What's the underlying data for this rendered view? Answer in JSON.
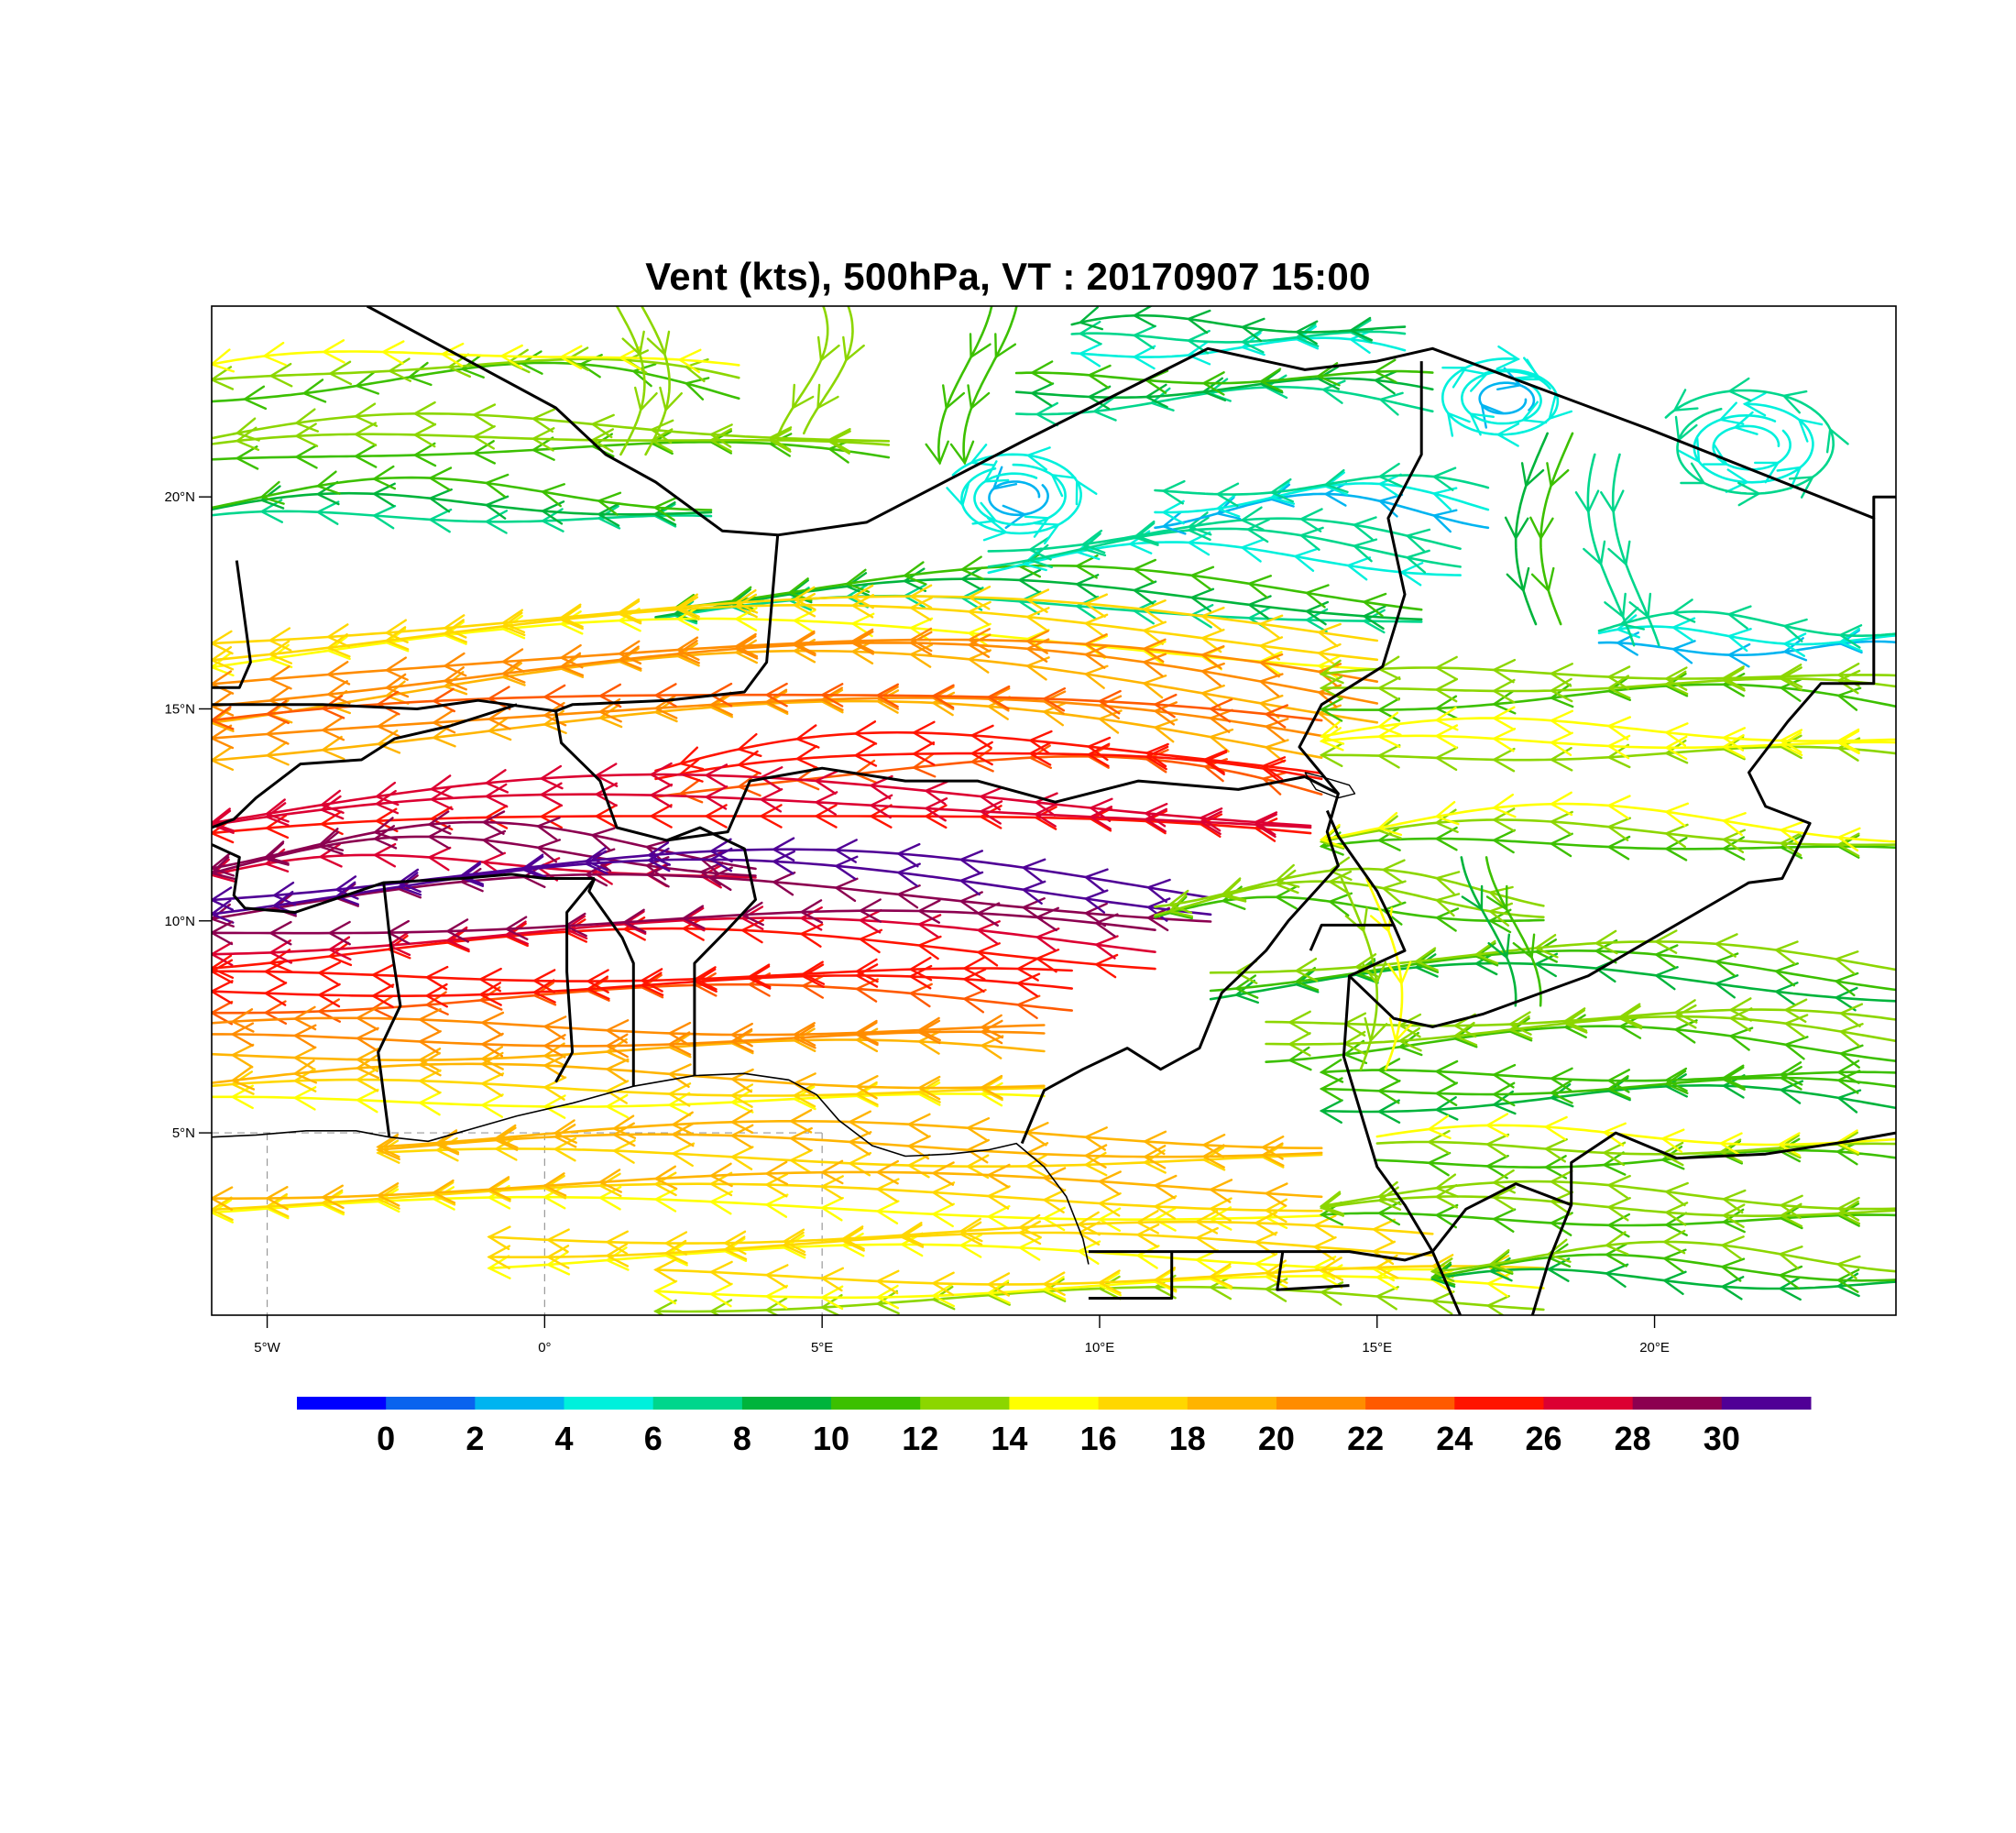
{
  "title": "Vent (kts), 500hPa, VT : 20170907  15:00",
  "map": {
    "lon_range": [
      -6,
      24.35
    ],
    "lat_range": [
      0.7,
      24.5
    ],
    "x_ticks": [
      {
        "lon": -5,
        "label": "5°W"
      },
      {
        "lon": 0,
        "label": "0°"
      },
      {
        "lon": 5,
        "label": "5°E"
      },
      {
        "lon": 10,
        "label": "10°E"
      },
      {
        "lon": 15,
        "label": "15°E"
      },
      {
        "lon": 20,
        "label": "20°E"
      }
    ],
    "y_ticks": [
      {
        "lat": 5,
        "label": "5°N"
      },
      {
        "lat": 10,
        "label": "10°N"
      },
      {
        "lat": 15,
        "label": "15°N"
      },
      {
        "lat": 20,
        "label": "20°N"
      }
    ],
    "coastline": [
      [
        -6,
        4.9
      ],
      [
        -5.2,
        4.95
      ],
      [
        -4.3,
        5.05
      ],
      [
        -3.4,
        5.05
      ],
      [
        -2.8,
        4.9
      ],
      [
        -2.1,
        4.8
      ],
      [
        -1.3,
        5.1
      ],
      [
        -0.5,
        5.4
      ],
      [
        0.5,
        5.7
      ],
      [
        1.6,
        6.1
      ],
      [
        2.7,
        6.35
      ],
      [
        3.6,
        6.4
      ],
      [
        4.4,
        6.25
      ],
      [
        4.9,
        5.9
      ],
      [
        5.3,
        5.3
      ],
      [
        5.9,
        4.7
      ],
      [
        6.5,
        4.45
      ],
      [
        7.3,
        4.5
      ],
      [
        8.0,
        4.6
      ],
      [
        8.5,
        4.75
      ],
      [
        9.0,
        4.2
      ],
      [
        9.4,
        3.5
      ],
      [
        9.7,
        2.5
      ],
      [
        9.8,
        1.9
      ]
    ],
    "borders": [
      [
        [
          -3.2,
          24.5
        ],
        [
          0.2,
          22.1
        ],
        [
          1.1,
          21.0
        ],
        [
          2.0,
          20.35
        ],
        [
          3.2,
          19.2
        ],
        [
          4.2,
          19.1
        ],
        [
          5.8,
          19.4
        ],
        [
          8.6,
          21.3
        ],
        [
          11.95,
          23.5
        ],
        [
          13.7,
          23.0
        ],
        [
          15.0,
          23.2
        ],
        [
          16.0,
          23.5
        ],
        [
          19.9,
          21.6
        ],
        [
          23.95,
          19.5
        ],
        [
          23.95,
          20.0
        ],
        [
          24.35,
          20.0
        ]
      ],
      [
        [
          -6,
          15.5
        ],
        [
          -5.5,
          15.5
        ],
        [
          -5.3,
          16.1
        ],
        [
          -5.55,
          18.5
        ]
      ],
      [
        [
          -6,
          15.1
        ],
        [
          -4.0,
          15.1
        ],
        [
          -2.3,
          15.0
        ],
        [
          -1.2,
          15.2
        ],
        [
          0.2,
          14.95
        ],
        [
          0.5,
          15.1
        ],
        [
          2.2,
          15.2
        ],
        [
          3.6,
          15.4
        ],
        [
          4.0,
          16.1
        ],
        [
          4.2,
          19.1
        ]
      ],
      [
        [
          -6,
          12.2
        ],
        [
          -5.6,
          12.4
        ],
        [
          -5.2,
          12.9
        ],
        [
          -4.4,
          13.7
        ],
        [
          -3.3,
          13.8
        ],
        [
          -2.7,
          14.3
        ],
        [
          -1.7,
          14.6
        ],
        [
          -0.5,
          15.1
        ]
      ],
      [
        [
          0.2,
          14.95
        ],
        [
          0.3,
          14.2
        ],
        [
          1.0,
          13.3
        ],
        [
          1.3,
          12.2
        ],
        [
          2.2,
          11.9
        ],
        [
          3.3,
          12.1
        ],
        [
          3.7,
          13.3
        ],
        [
          5.0,
          13.6
        ],
        [
          6.5,
          13.3
        ],
        [
          7.8,
          13.3
        ],
        [
          9.2,
          12.8
        ],
        [
          10.7,
          13.3
        ],
        [
          12.5,
          13.1
        ],
        [
          13.7,
          13.4
        ]
      ],
      [
        [
          2.2,
          11.9
        ],
        [
          2.8,
          12.2
        ],
        [
          3.6,
          11.7
        ],
        [
          3.8,
          10.5
        ],
        [
          3.3,
          9.8
        ],
        [
          2.7,
          9.0
        ],
        [
          2.7,
          6.35
        ]
      ],
      [
        [
          1.6,
          6.1
        ],
        [
          1.6,
          9.0
        ],
        [
          1.4,
          9.6
        ],
        [
          0.8,
          10.7
        ],
        [
          0.9,
          11.0
        ]
      ],
      [
        [
          0.9,
          11.0
        ],
        [
          0.0,
          11.0
        ],
        [
          -0.6,
          11.1
        ],
        [
          -1.5,
          11.0
        ],
        [
          -2.9,
          10.9
        ],
        [
          -4.5,
          10.2
        ],
        [
          -5.4,
          10.3
        ],
        [
          -5.6,
          10.6
        ],
        [
          -5.5,
          11.5
        ],
        [
          -6,
          11.8
        ]
      ],
      [
        [
          -2.9,
          10.9
        ],
        [
          -2.8,
          9.7
        ],
        [
          -2.6,
          8.0
        ],
        [
          -3.0,
          6.9
        ],
        [
          -2.8,
          4.9
        ]
      ],
      [
        [
          0.2,
          6.2
        ],
        [
          0.5,
          6.9
        ],
        [
          0.4,
          8.8
        ],
        [
          0.4,
          10.2
        ],
        [
          0.9,
          11.0
        ]
      ],
      [
        [
          13.7,
          13.4
        ],
        [
          14.3,
          13.0
        ],
        [
          14.1,
          12.1
        ],
        [
          14.3,
          11.3
        ],
        [
          13.4,
          10.0
        ],
        [
          13.0,
          9.3
        ],
        [
          12.2,
          8.3
        ],
        [
          11.8,
          7.0
        ],
        [
          11.1,
          6.5
        ],
        [
          10.5,
          7.0
        ],
        [
          9.7,
          6.5
        ],
        [
          9.0,
          6.0
        ],
        [
          8.6,
          4.75
        ]
      ],
      [
        [
          15.8,
          23.2
        ],
        [
          15.8,
          21.0
        ],
        [
          15.2,
          19.5
        ],
        [
          15.5,
          17.7
        ],
        [
          15.1,
          16.0
        ],
        [
          14.0,
          15.1
        ],
        [
          13.6,
          14.1
        ],
        [
          14.3,
          13.0
        ]
      ],
      [
        [
          14.1,
          12.6
        ],
        [
          14.3,
          12.0
        ],
        [
          15.0,
          10.7
        ],
        [
          15.3,
          9.9
        ],
        [
          14.7,
          9.9
        ],
        [
          14.0,
          9.9
        ],
        [
          13.8,
          9.3
        ]
      ],
      [
        [
          15.3,
          9.9
        ],
        [
          15.5,
          9.3
        ],
        [
          14.5,
          8.7
        ],
        [
          15.3,
          7.7
        ],
        [
          16.0,
          7.5
        ],
        [
          16.9,
          7.8
        ],
        [
          18.8,
          8.7
        ],
        [
          21.7,
          10.9
        ],
        [
          22.3,
          11.0
        ],
        [
          22.8,
          12.3
        ],
        [
          22.0,
          12.7
        ],
        [
          21.7,
          13.5
        ],
        [
          22.4,
          14.7
        ],
        [
          23.0,
          15.6
        ],
        [
          23.95,
          15.6
        ],
        [
          23.95,
          19.5
        ]
      ],
      [
        [
          14.5,
          8.7
        ],
        [
          14.4,
          6.8
        ],
        [
          14.7,
          5.5
        ],
        [
          15.0,
          4.2
        ],
        [
          15.5,
          3.3
        ],
        [
          16.0,
          2.2
        ],
        [
          16.6,
          3.2
        ],
        [
          17.5,
          3.8
        ],
        [
          18.5,
          3.3
        ],
        [
          18.5,
          4.3
        ],
        [
          19.3,
          5.0
        ],
        [
          20.4,
          4.4
        ],
        [
          22.0,
          4.5
        ],
        [
          23.5,
          4.8
        ],
        [
          24.35,
          5.0
        ]
      ],
      [
        [
          9.8,
          2.2
        ],
        [
          11.3,
          2.2
        ],
        [
          13.3,
          2.2
        ],
        [
          14.5,
          2.2
        ],
        [
          15.5,
          2.0
        ],
        [
          16.0,
          2.2
        ]
      ],
      [
        [
          11.3,
          2.2
        ],
        [
          11.3,
          1.1
        ],
        [
          9.8,
          1.1
        ]
      ],
      [
        [
          13.3,
          2.2
        ],
        [
          13.2,
          1.3
        ],
        [
          14.5,
          1.4
        ]
      ],
      [
        [
          16.0,
          2.2
        ],
        [
          16.5,
          0.7
        ]
      ],
      [
        [
          18.5,
          3.3
        ],
        [
          18.1,
          2.0
        ],
        [
          17.8,
          0.7
        ]
      ]
    ],
    "lake_outline": [
      [
        13.7,
        13.5
      ],
      [
        13.9,
        13.1
      ],
      [
        14.3,
        12.9
      ],
      [
        14.6,
        13.0
      ],
      [
        14.5,
        13.2
      ],
      [
        14.0,
        13.4
      ],
      [
        13.7,
        13.5
      ]
    ],
    "grid_dashes": [
      {
        "lon": -5
      },
      {
        "lon": 0
      },
      {
        "lon": 5
      },
      {
        "lat": 5
      }
    ]
  },
  "colorbar": {
    "colors": [
      "#0000ff",
      "#0a63ee",
      "#00b4f0",
      "#00f0dc",
      "#00d68c",
      "#00b43c",
      "#3cc000",
      "#8cd600",
      "#ffff00",
      "#ffd700",
      "#ffb400",
      "#ff8c00",
      "#ff5a00",
      "#ff1400",
      "#dc0032",
      "#8c0050",
      "#500096"
    ],
    "labels": [
      "0",
      "2",
      "4",
      "6",
      "8",
      "10",
      "12",
      "14",
      "16",
      "18",
      "20",
      "22",
      "24",
      "26",
      "28",
      "30"
    ]
  },
  "wind_field": {
    "description_units": "kts",
    "belts": [
      {
        "lat": 22.6,
        "lon_from": -6,
        "lon_to": 3.5,
        "speed": 13,
        "curvature": 1.4
      },
      {
        "lat": 21.0,
        "lon_from": -6,
        "lon_to": 6.2,
        "speed": 12,
        "curvature": 1.2
      },
      {
        "lat": 19.6,
        "lon_from": -6,
        "lon_to": 3.0,
        "speed": 9,
        "curvature": 0.7
      },
      {
        "lat": 17.3,
        "lon_from": 2.0,
        "lon_to": 15.8,
        "speed": 9,
        "curvature": 1.1
      },
      {
        "lat": 16.4,
        "lon_from": -6,
        "lon_to": 15.0,
        "speed": 16,
        "curvature": 1.6
      },
      {
        "lat": 15.2,
        "lon_from": -6,
        "lon_to": 15.0,
        "speed": 20,
        "curvature": 2.4
      },
      {
        "lat": 14.2,
        "lon_from": -6,
        "lon_to": 14.0,
        "speed": 21,
        "curvature": 2.2
      },
      {
        "lat": 13.1,
        "lon_from": 2.0,
        "lon_to": 14.0,
        "speed": 24,
        "curvature": 2.2
      },
      {
        "lat": 12.1,
        "lon_from": -6,
        "lon_to": 13.8,
        "speed": 26,
        "curvature": 1.8
      },
      {
        "lat": 11.2,
        "lon_from": -6,
        "lon_to": 3.8,
        "speed": 28,
        "curvature": 1.2
      },
      {
        "lat": 10.4,
        "lon_from": -6,
        "lon_to": 12.0,
        "speed": 30,
        "curvature": 1.6
      },
      {
        "lat": 9.4,
        "lon_from": -6,
        "lon_to": 11.0,
        "speed": 27,
        "curvature": 0.9
      },
      {
        "lat": 8.3,
        "lon_from": -6,
        "lon_to": 9.5,
        "speed": 24,
        "curvature": 0.5
      },
      {
        "lat": 7.1,
        "lon_from": -6,
        "lon_to": 9.0,
        "speed": 20,
        "curvature": 0.4
      },
      {
        "lat": 5.9,
        "lon_from": -6,
        "lon_to": 9.0,
        "speed": 17,
        "curvature": 0.5
      },
      {
        "lat": 4.6,
        "lon_from": -3.0,
        "lon_to": 14.0,
        "speed": 18,
        "curvature": 0.3
      },
      {
        "lat": 3.4,
        "lon_from": -6,
        "lon_to": 14.0,
        "speed": 17,
        "curvature": 0.3
      },
      {
        "lat": 2.3,
        "lon_from": -1.0,
        "lon_to": 16.0,
        "speed": 16,
        "curvature": 0.2
      },
      {
        "lat": 1.3,
        "lon_from": 2.0,
        "lon_to": 18.0,
        "speed": 15,
        "curvature": 0.2
      },
      {
        "lat": 15.3,
        "lon_from": 14.0,
        "lon_to": 24.35,
        "speed": 12,
        "curvature": 0.8
      },
      {
        "lat": 14.0,
        "lon_from": 14.0,
        "lon_to": 24.35,
        "speed": 14,
        "curvature": 0.7
      },
      {
        "lat": 11.8,
        "lon_from": 14.0,
        "lon_to": 24.35,
        "speed": 13,
        "curvature": 0.9
      },
      {
        "lat": 10.3,
        "lon_from": 11.0,
        "lon_to": 18.0,
        "speed": 12,
        "curvature": 0.8
      },
      {
        "lat": 8.6,
        "lon_from": 12.0,
        "lon_to": 24.35,
        "speed": 11,
        "curvature": 0.9
      },
      {
        "lat": 7.2,
        "lon_from": 13.0,
        "lon_to": 24.35,
        "speed": 12,
        "curvature": 0.7
      },
      {
        "lat": 5.9,
        "lon_from": 14.0,
        "lon_to": 24.35,
        "speed": 10,
        "curvature": 0.6
      },
      {
        "lat": 4.5,
        "lon_from": 15.0,
        "lon_to": 24.35,
        "speed": 13,
        "curvature": 0.5
      },
      {
        "lat": 3.1,
        "lon_from": 14.0,
        "lon_to": 24.35,
        "speed": 12,
        "curvature": 0.5
      },
      {
        "lat": 1.7,
        "lon_from": 16.0,
        "lon_to": 24.35,
        "speed": 11,
        "curvature": 0.4
      },
      {
        "lat": 18.6,
        "lon_from": 8.0,
        "lon_to": 16.5,
        "speed": 6,
        "curvature": 0.8
      },
      {
        "lat": 19.8,
        "lon_from": 11.0,
        "lon_to": 17.0,
        "speed": 5,
        "curvature": 0.6
      },
      {
        "lat": 22.4,
        "lon_from": 8.5,
        "lon_to": 16.0,
        "speed": 9,
        "curvature": 0.5
      },
      {
        "lat": 23.6,
        "lon_from": 9.5,
        "lon_to": 15.5,
        "speed": 7,
        "curvature": 0.6
      },
      {
        "lat": 16.6,
        "lon_from": 19.0,
        "lon_to": 24.35,
        "speed": 5,
        "curvature": 0.4
      }
    ],
    "eddies": [
      {
        "lon": 8.5,
        "lat": 20.0,
        "radius": 1.3,
        "speed": 3,
        "spin": 1
      },
      {
        "lon": 17.3,
        "lat": 22.3,
        "radius": 1.2,
        "speed": 3,
        "spin": -1
      },
      {
        "lon": 21.7,
        "lat": 21.2,
        "radius": 1.7,
        "speed": 4,
        "spin": 1
      }
    ],
    "meridional_streams": [
      {
        "lon": 1.3,
        "lat_from": 24.5,
        "lat_to": 21.0,
        "speed": 12
      },
      {
        "lon": 4.6,
        "lat_from": 24.5,
        "lat_to": 21.5,
        "speed": 12
      },
      {
        "lon": 7.6,
        "lat_from": 24.5,
        "lat_to": 20.8,
        "speed": 10
      },
      {
        "lon": 18.0,
        "lat_from": 21.5,
        "lat_to": 17.0,
        "speed": 9
      },
      {
        "lon": 19.3,
        "lat_from": 21.0,
        "lat_to": 16.5,
        "speed": 6
      },
      {
        "lon": 17.0,
        "lat_from": 11.5,
        "lat_to": 8.0,
        "speed": 9
      },
      {
        "lon": 14.5,
        "lat_from": 11.0,
        "lat_to": 6.5,
        "speed": 13
      }
    ]
  }
}
